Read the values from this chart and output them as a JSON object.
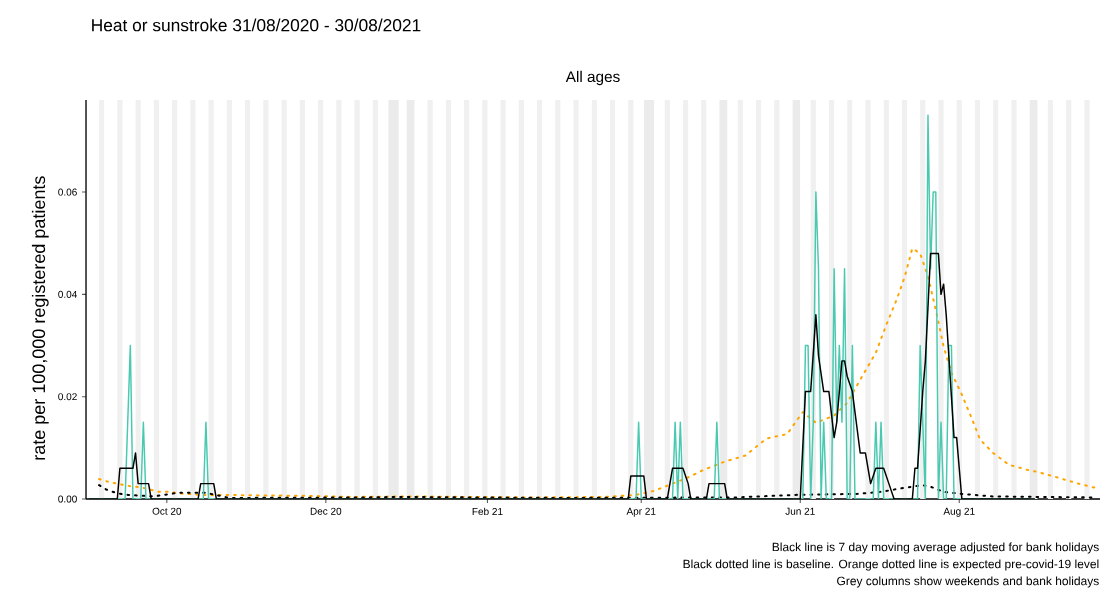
{
  "chart_data": {
    "type": "line",
    "title": "Heat or sunstroke 31/08/2020 - 30/08/2021",
    "subtitle": "All ages",
    "ylabel": "rate per 100,000 registered patients",
    "annotations": [
      "Black line is 7 day moving average adjusted for bank holidays",
      "Black dotted line is baseline. Orange dotted line is expected pre-covid-19 level",
      "Grey columns show weekends and bank holidays"
    ],
    "xlim": [
      "2020-08-31",
      "2021-09-24"
    ],
    "ylim": [
      0,
      0.078
    ],
    "xticks": [
      {
        "value": "2020-10-01",
        "label": "Oct 20"
      },
      {
        "value": "2020-12-01",
        "label": "Dec 20"
      },
      {
        "value": "2021-02-01",
        "label": "Feb 21"
      },
      {
        "value": "2021-04-01",
        "label": "Apr 21"
      },
      {
        "value": "2021-06-01",
        "label": "Jun 21"
      },
      {
        "value": "2021-08-01",
        "label": "Aug 21"
      }
    ],
    "yticks": [
      {
        "value": 0,
        "label": "0.00"
      },
      {
        "value": 0.02,
        "label": "0.02"
      },
      {
        "value": 0.04,
        "label": "0.04"
      },
      {
        "value": 0.06,
        "label": "0.06"
      }
    ],
    "marker": "none",
    "bands": [
      {
        "axis": "x",
        "from": "2020-09-05",
        "to": "2020-09-07",
        "color": "#f0f0f0"
      },
      {
        "axis": "x",
        "from": "2020-09-12",
        "to": "2020-09-14",
        "color": "#f0f0f0"
      },
      {
        "axis": "x",
        "from": "2020-09-19",
        "to": "2020-09-21",
        "color": "#f0f0f0"
      },
      {
        "axis": "x",
        "from": "2020-09-26",
        "to": "2020-09-28",
        "color": "#f0f0f0"
      },
      {
        "axis": "x",
        "from": "2020-10-03",
        "to": "2020-10-05",
        "color": "#f0f0f0"
      },
      {
        "axis": "x",
        "from": "2020-10-10",
        "to": "2020-10-12",
        "color": "#f0f0f0"
      },
      {
        "axis": "x",
        "from": "2020-10-17",
        "to": "2020-10-19",
        "color": "#f0f0f0"
      },
      {
        "axis": "x",
        "from": "2020-10-24",
        "to": "2020-10-26",
        "color": "#f0f0f0"
      },
      {
        "axis": "x",
        "from": "2020-10-31",
        "to": "2020-11-02",
        "color": "#f0f0f0"
      },
      {
        "axis": "x",
        "from": "2020-11-07",
        "to": "2020-11-09",
        "color": "#f0f0f0"
      },
      {
        "axis": "x",
        "from": "2020-11-14",
        "to": "2020-11-16",
        "color": "#f0f0f0"
      },
      {
        "axis": "x",
        "from": "2020-11-21",
        "to": "2020-11-23",
        "color": "#f0f0f0"
      },
      {
        "axis": "x",
        "from": "2020-11-28",
        "to": "2020-11-30",
        "color": "#f0f0f0"
      },
      {
        "axis": "x",
        "from": "2020-12-05",
        "to": "2020-12-07",
        "color": "#f0f0f0"
      },
      {
        "axis": "x",
        "from": "2020-12-12",
        "to": "2020-12-14",
        "color": "#f0f0f0"
      },
      {
        "axis": "x",
        "from": "2020-12-19",
        "to": "2020-12-21",
        "color": "#f0f0f0"
      },
      {
        "axis": "x",
        "from": "2020-12-25",
        "to": "2020-12-29",
        "color": "#ebebeb"
      },
      {
        "axis": "x",
        "from": "2021-01-01",
        "to": "2021-01-04",
        "color": "#ebebeb"
      },
      {
        "axis": "x",
        "from": "2021-01-09",
        "to": "2021-01-11",
        "color": "#f0f0f0"
      },
      {
        "axis": "x",
        "from": "2021-01-16",
        "to": "2021-01-18",
        "color": "#f0f0f0"
      },
      {
        "axis": "x",
        "from": "2021-01-23",
        "to": "2021-01-25",
        "color": "#f0f0f0"
      },
      {
        "axis": "x",
        "from": "2021-01-30",
        "to": "2021-02-01",
        "color": "#f0f0f0"
      },
      {
        "axis": "x",
        "from": "2021-02-06",
        "to": "2021-02-08",
        "color": "#f0f0f0"
      },
      {
        "axis": "x",
        "from": "2021-02-13",
        "to": "2021-02-15",
        "color": "#f0f0f0"
      },
      {
        "axis": "x",
        "from": "2021-02-20",
        "to": "2021-02-22",
        "color": "#f0f0f0"
      },
      {
        "axis": "x",
        "from": "2021-02-27",
        "to": "2021-03-01",
        "color": "#f0f0f0"
      },
      {
        "axis": "x",
        "from": "2021-03-06",
        "to": "2021-03-08",
        "color": "#f0f0f0"
      },
      {
        "axis": "x",
        "from": "2021-03-13",
        "to": "2021-03-15",
        "color": "#f0f0f0"
      },
      {
        "axis": "x",
        "from": "2021-03-20",
        "to": "2021-03-22",
        "color": "#f0f0f0"
      },
      {
        "axis": "x",
        "from": "2021-03-27",
        "to": "2021-03-29",
        "color": "#f0f0f0"
      },
      {
        "axis": "x",
        "from": "2021-04-02",
        "to": "2021-04-06",
        "color": "#ebebeb"
      },
      {
        "axis": "x",
        "from": "2021-04-10",
        "to": "2021-04-12",
        "color": "#f0f0f0"
      },
      {
        "axis": "x",
        "from": "2021-04-17",
        "to": "2021-04-19",
        "color": "#f0f0f0"
      },
      {
        "axis": "x",
        "from": "2021-04-24",
        "to": "2021-04-26",
        "color": "#f0f0f0"
      },
      {
        "axis": "x",
        "from": "2021-05-01",
        "to": "2021-05-04",
        "color": "#ebebeb"
      },
      {
        "axis": "x",
        "from": "2021-05-08",
        "to": "2021-05-10",
        "color": "#f0f0f0"
      },
      {
        "axis": "x",
        "from": "2021-05-15",
        "to": "2021-05-17",
        "color": "#f0f0f0"
      },
      {
        "axis": "x",
        "from": "2021-05-22",
        "to": "2021-05-24",
        "color": "#f0f0f0"
      },
      {
        "axis": "x",
        "from": "2021-05-29",
        "to": "2021-06-01",
        "color": "#ebebeb"
      },
      {
        "axis": "x",
        "from": "2021-06-05",
        "to": "2021-06-07",
        "color": "#f0f0f0"
      },
      {
        "axis": "x",
        "from": "2021-06-12",
        "to": "2021-06-14",
        "color": "#f0f0f0"
      },
      {
        "axis": "x",
        "from": "2021-06-19",
        "to": "2021-06-21",
        "color": "#f0f0f0"
      },
      {
        "axis": "x",
        "from": "2021-06-26",
        "to": "2021-06-28",
        "color": "#f0f0f0"
      },
      {
        "axis": "x",
        "from": "2021-07-03",
        "to": "2021-07-05",
        "color": "#f0f0f0"
      },
      {
        "axis": "x",
        "from": "2021-07-10",
        "to": "2021-07-12",
        "color": "#f0f0f0"
      },
      {
        "axis": "x",
        "from": "2021-07-17",
        "to": "2021-07-19",
        "color": "#f0f0f0"
      },
      {
        "axis": "x",
        "from": "2021-07-24",
        "to": "2021-07-26",
        "color": "#f0f0f0"
      },
      {
        "axis": "x",
        "from": "2021-07-31",
        "to": "2021-08-02",
        "color": "#f0f0f0"
      },
      {
        "axis": "x",
        "from": "2021-08-07",
        "to": "2021-08-09",
        "color": "#f0f0f0"
      },
      {
        "axis": "x",
        "from": "2021-08-14",
        "to": "2021-08-16",
        "color": "#f0f0f0"
      },
      {
        "axis": "x",
        "from": "2021-08-21",
        "to": "2021-08-23",
        "color": "#f0f0f0"
      },
      {
        "axis": "x",
        "from": "2021-08-28",
        "to": "2021-08-31",
        "color": "#ebebeb"
      },
      {
        "axis": "x",
        "from": "2021-09-04",
        "to": "2021-09-06",
        "color": "#f0f0f0"
      },
      {
        "axis": "x",
        "from": "2021-09-11",
        "to": "2021-09-13",
        "color": "#f0f0f0"
      },
      {
        "axis": "x",
        "from": "2021-09-18",
        "to": "2021-09-20",
        "color": "#f0f0f0"
      }
    ],
    "series": [
      {
        "color": "#ffa500",
        "line_style": "dotted",
        "x": [
          "2020-09-05",
          "2020-09-09",
          "2020-09-17",
          "2020-09-21",
          "2020-09-28",
          "2020-10-02",
          "2020-10-06",
          "2020-10-14",
          "2020-10-22",
          "2020-11-06",
          "2020-11-25",
          "2020-12-11",
          "2021-01-02",
          "2021-02-17",
          "2021-03-18",
          "2021-03-30",
          "2021-04-06",
          "2021-04-18",
          "2021-04-25",
          "2021-05-03",
          "2021-05-11",
          "2021-05-19",
          "2021-05-27",
          "2021-06-02",
          "2021-06-07",
          "2021-06-14",
          "2021-06-19",
          "2021-06-24",
          "2021-06-30",
          "2021-07-04",
          "2021-07-08",
          "2021-07-11",
          "2021-07-14",
          "2021-07-17",
          "2021-07-20",
          "2021-07-23",
          "2021-07-26",
          "2021-07-29",
          "2021-08-02",
          "2021-08-06",
          "2021-08-09",
          "2021-08-14",
          "2021-08-20",
          "2021-08-27",
          "2021-08-31",
          "2021-09-07",
          "2021-09-15",
          "2021-09-22"
        ],
        "values": [
          0.0039,
          0.0033,
          0.0025,
          0.0023,
          0.0014,
          0.0014,
          0.0011,
          0.0008,
          0.0008,
          0.0007,
          0.0006,
          0.0004,
          0.0005,
          0.0003,
          0.0004,
          0.0008,
          0.0016,
          0.004,
          0.0057,
          0.0073,
          0.0085,
          0.0118,
          0.0127,
          0.017,
          0.0149,
          0.0163,
          0.0188,
          0.0233,
          0.0286,
          0.034,
          0.039,
          0.0433,
          0.049,
          0.048,
          0.0435,
          0.037,
          0.0298,
          0.0247,
          0.0204,
          0.0155,
          0.0116,
          0.009,
          0.0067,
          0.0057,
          0.0053,
          0.0043,
          0.0031,
          0.0022
        ]
      },
      {
        "color": "#000000",
        "line_style": "dotted",
        "x": [
          "2020-09-05",
          "2020-09-08",
          "2020-09-12",
          "2020-09-16",
          "2020-09-26",
          "2020-10-05",
          "2020-10-16",
          "2020-10-25",
          "2020-12-16",
          "2020-12-29",
          "2021-03-01",
          "2021-05-07",
          "2021-05-30",
          "2021-06-23",
          "2021-07-02",
          "2021-07-10",
          "2021-07-18",
          "2021-07-21",
          "2021-07-26",
          "2021-08-02",
          "2021-08-14",
          "2021-09-21"
        ],
        "values": [
          0.0027,
          0.0018,
          0.0011,
          0.0008,
          0.0005,
          0.0012,
          0.0012,
          0.0002,
          0.0003,
          0.0004,
          0.0002,
          0.0003,
          0.0008,
          0.001,
          0.0014,
          0.0021,
          0.0027,
          0.0024,
          0.0014,
          0.001,
          0.0005,
          0.0003
        ]
      },
      {
        "color": "#48c9b0",
        "line_style": "solid",
        "x": [
          "2020-09-01",
          "2020-09-15",
          "2020-09-16",
          "2020-09-17",
          "2020-09-18",
          "2020-09-21",
          "2020-09-22",
          "2020-09-23",
          "2020-10-15",
          "2020-10-16",
          "2020-10-17",
          "2021-03-30",
          "2021-03-31",
          "2021-04-01",
          "2021-04-13",
          "2021-04-14",
          "2021-04-15",
          "2021-04-16",
          "2021-04-17",
          "2021-04-29",
          "2021-04-30",
          "2021-05-01",
          "2021-06-02",
          "2021-06-03",
          "2021-06-04",
          "2021-06-05",
          "2021-06-06",
          "2021-06-07",
          "2021-06-08",
          "2021-06-09",
          "2021-06-10",
          "2021-06-11",
          "2021-06-13",
          "2021-06-14",
          "2021-06-15",
          "2021-06-16",
          "2021-06-17",
          "2021-06-18",
          "2021-06-19",
          "2021-06-20",
          "2021-06-21",
          "2021-06-22",
          "2021-06-29",
          "2021-06-30",
          "2021-07-01",
          "2021-07-02",
          "2021-07-03",
          "2021-07-16",
          "2021-07-17",
          "2021-07-18",
          "2021-07-19",
          "2021-07-20",
          "2021-07-21",
          "2021-07-22",
          "2021-07-23",
          "2021-07-24",
          "2021-07-25",
          "2021-07-26",
          "2021-07-27",
          "2021-07-28",
          "2021-07-29",
          "2021-07-30",
          "2021-08-30"
        ],
        "values": [
          0,
          0,
          0.015,
          0.03,
          0,
          0,
          0.015,
          0,
          0,
          0.015,
          0,
          0,
          0.015,
          0,
          0,
          0.015,
          0,
          0.015,
          0,
          0,
          0.015,
          0,
          0,
          0.03,
          0.03,
          0,
          0.015,
          0.06,
          0.045,
          0,
          0.015,
          0,
          0,
          0.045,
          0.015,
          0.03,
          0.015,
          0.045,
          0,
          0,
          0.03,
          0,
          0,
          0.015,
          0,
          0.015,
          0,
          0,
          0.03,
          0.015,
          0,
          0.075,
          0.045,
          0.06,
          0.06,
          0,
          0.015,
          0,
          0,
          0.03,
          0.03,
          0,
          0
        ]
      },
      {
        "color": "#000000",
        "line_style": "solid",
        "x": [
          "2020-09-01",
          "2020-09-12",
          "2020-09-13",
          "2020-09-18",
          "2020-09-19",
          "2020-09-20",
          "2020-09-24",
          "2020-09-25",
          "2020-10-13",
          "2020-10-14",
          "2020-10-19",
          "2020-10-20",
          "2021-03-27",
          "2021-03-28",
          "2021-04-02",
          "2021-04-03",
          "2021-04-11",
          "2021-04-13",
          "2021-04-17",
          "2021-04-19",
          "2021-04-20",
          "2021-04-26",
          "2021-04-27",
          "2021-05-03",
          "2021-05-04",
          "2021-06-01",
          "2021-06-03",
          "2021-06-05",
          "2021-06-07",
          "2021-06-08",
          "2021-06-10",
          "2021-06-12",
          "2021-06-14",
          "2021-06-15",
          "2021-06-17",
          "2021-06-18",
          "2021-06-19",
          "2021-06-21",
          "2021-06-24",
          "2021-06-26",
          "2021-06-28",
          "2021-06-30",
          "2021-07-03",
          "2021-07-05",
          "2021-07-07",
          "2021-07-14",
          "2021-07-15",
          "2021-07-16",
          "2021-07-18",
          "2021-07-19",
          "2021-07-21",
          "2021-07-24",
          "2021-07-25",
          "2021-07-26",
          "2021-07-27",
          "2021-07-30",
          "2021-07-31",
          "2021-08-02",
          "2021-08-30"
        ],
        "values": [
          0,
          0,
          0.006,
          0.006,
          0.009,
          0.003,
          0.003,
          0,
          0,
          0.003,
          0.003,
          0,
          0,
          0.0045,
          0.0045,
          0,
          0,
          0.006,
          0.006,
          0.003,
          0,
          0,
          0.003,
          0.003,
          0,
          0,
          0.021,
          0.021,
          0.036,
          0.028,
          0.021,
          0.021,
          0.012,
          0.015,
          0.027,
          0.027,
          0.024,
          0.021,
          0.009,
          0.009,
          0.003,
          0.006,
          0.006,
          0.003,
          0,
          0,
          0.006,
          0.006,
          0.021,
          0.027,
          0.048,
          0.048,
          0.04,
          0.042,
          0.036,
          0.012,
          0.012,
          0,
          0
        ]
      }
    ]
  }
}
